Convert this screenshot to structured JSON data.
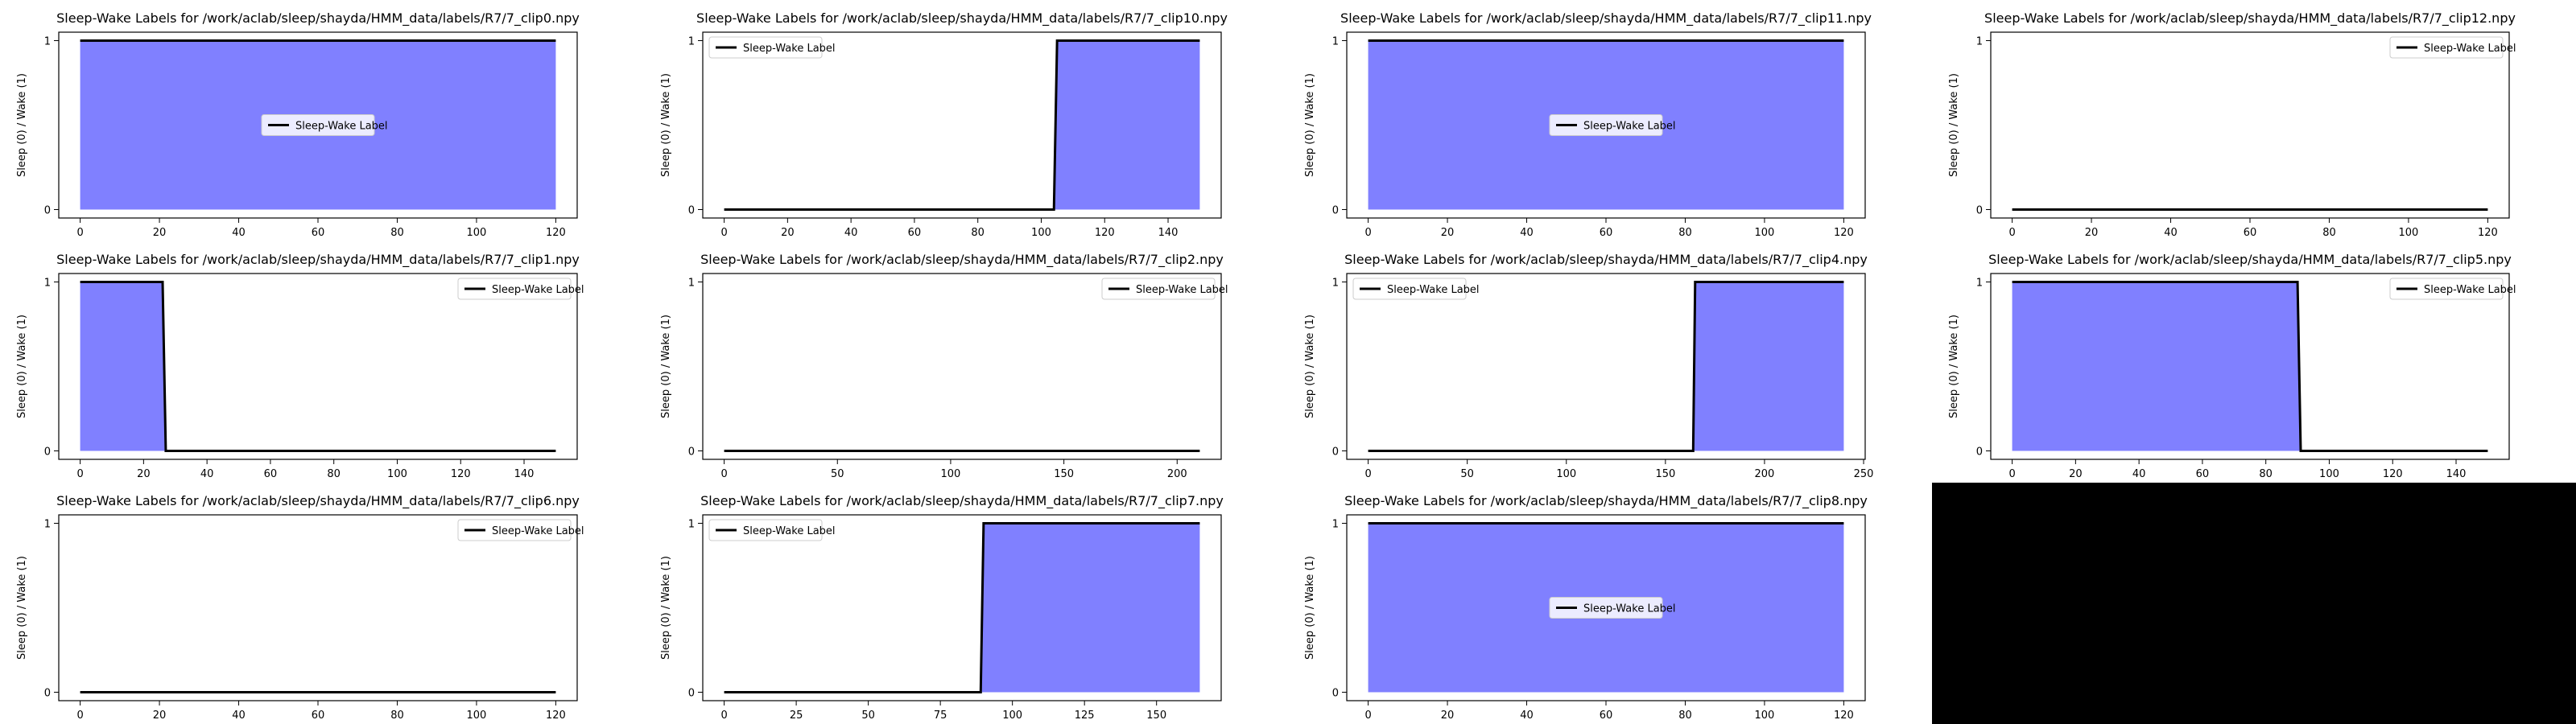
{
  "figure": {
    "background": "#ffffff",
    "blank_panel_color": "#000000",
    "fill_color": "#8080ff",
    "line_color": "#000000",
    "ylabel": "Sleep (0) / Wake (1)",
    "legend_label": "Sleep-Wake Label"
  },
  "chart_data": [
    {
      "type": "area",
      "title": "Sleep-Wake Labels for /work/aclab/sleep/shayda/HMM_data/labels/R7/7_clip0.npy",
      "ylabel": "Sleep (0) / Wake (1)",
      "xlim": [
        0,
        120
      ],
      "ylim": [
        0,
        1
      ],
      "x_ticks": [
        0,
        20,
        40,
        60,
        80,
        100,
        120
      ],
      "y_ticks": [
        0,
        1
      ],
      "legend": "center",
      "series": [
        {
          "name": "Sleep-Wake Label",
          "x": [
            0,
            120
          ],
          "y": [
            1,
            1
          ]
        }
      ]
    },
    {
      "type": "area",
      "title": "Sleep-Wake Labels for /work/aclab/sleep/shayda/HMM_data/labels/R7/7_clip10.npy",
      "ylabel": "Sleep (0) / Wake (1)",
      "xlim": [
        0,
        150
      ],
      "ylim": [
        0,
        1
      ],
      "x_ticks": [
        0,
        20,
        40,
        60,
        80,
        100,
        120,
        140
      ],
      "y_ticks": [
        0,
        1
      ],
      "legend": "top-left",
      "series": [
        {
          "name": "Sleep-Wake Label",
          "x": [
            0,
            104,
            105,
            150
          ],
          "y": [
            0,
            0,
            1,
            1
          ]
        }
      ]
    },
    {
      "type": "area",
      "title": "Sleep-Wake Labels for /work/aclab/sleep/shayda/HMM_data/labels/R7/7_clip11.npy",
      "ylabel": "Sleep (0) / Wake (1)",
      "xlim": [
        0,
        120
      ],
      "ylim": [
        0,
        1
      ],
      "x_ticks": [
        0,
        20,
        40,
        60,
        80,
        100,
        120
      ],
      "y_ticks": [
        0,
        1
      ],
      "legend": "center",
      "series": [
        {
          "name": "Sleep-Wake Label",
          "x": [
            0,
            120
          ],
          "y": [
            1,
            1
          ]
        }
      ]
    },
    {
      "type": "area",
      "title": "Sleep-Wake Labels for /work/aclab/sleep/shayda/HMM_data/labels/R7/7_clip12.npy",
      "ylabel": "Sleep (0) / Wake (1)",
      "xlim": [
        0,
        120
      ],
      "ylim": [
        0,
        1
      ],
      "x_ticks": [
        0,
        20,
        40,
        60,
        80,
        100,
        120
      ],
      "y_ticks": [
        0,
        1
      ],
      "legend": "top-right",
      "series": [
        {
          "name": "Sleep-Wake Label",
          "x": [
            0,
            120
          ],
          "y": [
            0,
            0
          ]
        }
      ]
    },
    {
      "type": "area",
      "title": "Sleep-Wake Labels for /work/aclab/sleep/shayda/HMM_data/labels/R7/7_clip1.npy",
      "ylabel": "Sleep (0) / Wake (1)",
      "xlim": [
        0,
        150
      ],
      "ylim": [
        0,
        1
      ],
      "x_ticks": [
        0,
        20,
        40,
        60,
        80,
        100,
        120,
        140
      ],
      "y_ticks": [
        0,
        1
      ],
      "legend": "top-right",
      "series": [
        {
          "name": "Sleep-Wake Label",
          "x": [
            0,
            26,
            27,
            150
          ],
          "y": [
            1,
            1,
            0,
            0
          ]
        }
      ]
    },
    {
      "type": "area",
      "title": "Sleep-Wake Labels for /work/aclab/sleep/shayda/HMM_data/labels/R7/7_clip2.npy",
      "ylabel": "Sleep (0) / Wake (1)",
      "xlim": [
        0,
        210
      ],
      "ylim": [
        0,
        1
      ],
      "x_ticks": [
        0,
        50,
        100,
        150,
        200
      ],
      "y_ticks": [
        0,
        1
      ],
      "legend": "top-right",
      "series": [
        {
          "name": "Sleep-Wake Label",
          "x": [
            0,
            210
          ],
          "y": [
            0,
            0
          ]
        }
      ]
    },
    {
      "type": "area",
      "title": "Sleep-Wake Labels for /work/aclab/sleep/shayda/HMM_data/labels/R7/7_clip4.npy",
      "ylabel": "Sleep (0) / Wake (1)",
      "xlim": [
        0,
        240
      ],
      "ylim": [
        0,
        1
      ],
      "x_ticks": [
        0,
        50,
        100,
        150,
        200,
        250
      ],
      "y_ticks": [
        0,
        1
      ],
      "legend": "top-left",
      "series": [
        {
          "name": "Sleep-Wake Label",
          "x": [
            0,
            164,
            165,
            240
          ],
          "y": [
            0,
            0,
            1,
            1
          ]
        }
      ]
    },
    {
      "type": "area",
      "title": "Sleep-Wake Labels for /work/aclab/sleep/shayda/HMM_data/labels/R7/7_clip5.npy",
      "ylabel": "Sleep (0) / Wake (1)",
      "xlim": [
        0,
        150
      ],
      "ylim": [
        0,
        1
      ],
      "x_ticks": [
        0,
        20,
        40,
        60,
        80,
        100,
        120,
        140
      ],
      "y_ticks": [
        0,
        1
      ],
      "legend": "top-right",
      "series": [
        {
          "name": "Sleep-Wake Label",
          "x": [
            0,
            90,
            91,
            150
          ],
          "y": [
            1,
            1,
            0,
            0
          ]
        }
      ]
    },
    {
      "type": "area",
      "title": "Sleep-Wake Labels for /work/aclab/sleep/shayda/HMM_data/labels/R7/7_clip6.npy",
      "ylabel": "Sleep (0) / Wake (1)",
      "xlim": [
        0,
        120
      ],
      "ylim": [
        0,
        1
      ],
      "x_ticks": [
        0,
        20,
        40,
        60,
        80,
        100,
        120
      ],
      "y_ticks": [
        0,
        1
      ],
      "legend": "top-right",
      "series": [
        {
          "name": "Sleep-Wake Label",
          "x": [
            0,
            120
          ],
          "y": [
            0,
            0
          ]
        }
      ]
    },
    {
      "type": "area",
      "title": "Sleep-Wake Labels for /work/aclab/sleep/shayda/HMM_data/labels/R7/7_clip7.npy",
      "ylabel": "Sleep (0) / Wake (1)",
      "xlim": [
        0,
        165
      ],
      "ylim": [
        0,
        1
      ],
      "x_ticks": [
        0,
        25,
        50,
        75,
        100,
        125,
        150
      ],
      "y_ticks": [
        0,
        1
      ],
      "legend": "top-left",
      "series": [
        {
          "name": "Sleep-Wake Label",
          "x": [
            0,
            89,
            90,
            165
          ],
          "y": [
            0,
            0,
            1,
            1
          ]
        }
      ]
    },
    {
      "type": "area",
      "title": "Sleep-Wake Labels for /work/aclab/sleep/shayda/HMM_data/labels/R7/7_clip8.npy",
      "ylabel": "Sleep (0) / Wake (1)",
      "xlim": [
        0,
        120
      ],
      "ylim": [
        0,
        1
      ],
      "x_ticks": [
        0,
        20,
        40,
        60,
        80,
        100,
        120
      ],
      "y_ticks": [
        0,
        1
      ],
      "legend": "center",
      "series": [
        {
          "name": "Sleep-Wake Label",
          "x": [
            0,
            120
          ],
          "y": [
            1,
            1
          ]
        }
      ]
    }
  ]
}
